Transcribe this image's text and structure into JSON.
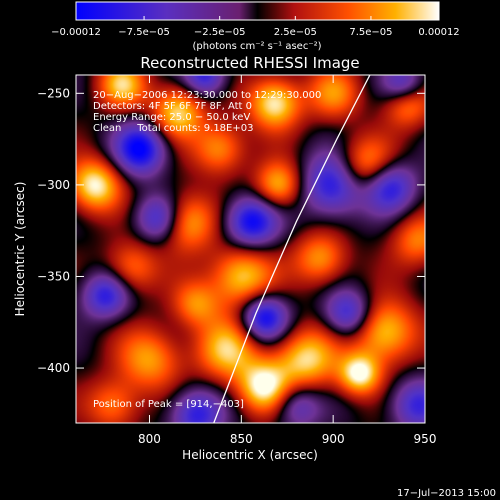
{
  "chart_data": {
    "type": "heatmap",
    "title": "Reconstructed RHESSI Image",
    "xlabel": "Heliocentric X (arcsec)",
    "ylabel": "Heliocentric Y (arcsec)",
    "xlim": [
      760,
      950
    ],
    "ylim": [
      -430,
      -240
    ],
    "x_ticks": [
      {
        "value": 800,
        "label": "800"
      },
      {
        "value": 850,
        "label": "850"
      },
      {
        "value": 900,
        "label": "900"
      },
      {
        "value": 950,
        "label": "950"
      }
    ],
    "y_ticks": [
      {
        "value": -250,
        "label": "−250"
      },
      {
        "value": -300,
        "label": "−300"
      },
      {
        "value": -350,
        "label": "−350"
      },
      {
        "value": -400,
        "label": "−400"
      }
    ],
    "colorbar": {
      "range": [
        -0.00012,
        0.00012
      ],
      "ticks": [
        {
          "value": -0.00012,
          "label": "−0.00012"
        },
        {
          "value": -7.5e-05,
          "label": "−7.5e−05"
        },
        {
          "value": -2.5e-05,
          "label": "−2.5e−05"
        },
        {
          "value": 2.5e-05,
          "label": "2.5e−05"
        },
        {
          "value": 7.5e-05,
          "label": "7.5e−05"
        },
        {
          "value": 0.00012,
          "label": "0.00012"
        }
      ],
      "units_label": "(photons cm⁻² s⁻¹ asec⁻²)"
    },
    "annotations": [
      "20−Aug−2006 12:23:30.000 to 12:29:30.000",
      "Detectors: 4F 5F 6F 7F 8F, Att 0",
      "Energy Range: 25.0 − 50.0 keV",
      "Clean     Total counts: 9.18E+03"
    ],
    "peak_label": "Position of Peak = [914,−403]",
    "limb_curve": [
      [
        835,
        -430
      ],
      [
        858,
        -370
      ],
      [
        880,
        -320
      ],
      [
        902,
        -275
      ],
      [
        920,
        -240
      ]
    ],
    "blobs": [
      [
        770,
        -300,
        1.0,
        10
      ],
      [
        785,
        -245,
        0.8,
        9
      ],
      [
        790,
        -345,
        0.6,
        10
      ],
      [
        800,
        -395,
        0.7,
        12
      ],
      [
        815,
        -260,
        0.9,
        10
      ],
      [
        820,
        -320,
        0.8,
        11
      ],
      [
        838,
        -280,
        0.7,
        10
      ],
      [
        850,
        -350,
        0.9,
        12
      ],
      [
        842,
        -390,
        0.8,
        12
      ],
      [
        868,
        -255,
        1.0,
        10
      ],
      [
        870,
        -300,
        0.8,
        9
      ],
      [
        862,
        -410,
        1.0,
        10
      ],
      [
        885,
        -395,
        0.9,
        12
      ],
      [
        893,
        -340,
        0.7,
        10
      ],
      [
        900,
        -250,
        0.6,
        10
      ],
      [
        918,
        -290,
        0.8,
        11
      ],
      [
        928,
        -380,
        0.9,
        12
      ],
      [
        914,
        -403,
        1.0,
        8
      ],
      [
        940,
        -255,
        0.7,
        9
      ],
      [
        946,
        -330,
        0.6,
        10
      ],
      [
        780,
        -420,
        0.6,
        10
      ],
      [
        825,
        -365,
        0.6,
        9
      ],
      [
        795,
        -280,
        -1.0,
        10
      ],
      [
        805,
        -318,
        -0.8,
        9
      ],
      [
        830,
        -240,
        -0.8,
        8
      ],
      [
        855,
        -320,
        -1.0,
        10
      ],
      [
        862,
        -372,
        -1.0,
        9
      ],
      [
        900,
        -300,
        -0.9,
        12
      ],
      [
        908,
        -370,
        -0.8,
        9
      ],
      [
        930,
        -300,
        -0.9,
        10
      ],
      [
        938,
        -245,
        -0.7,
        8
      ],
      [
        776,
        -360,
        -0.8,
        9
      ],
      [
        825,
        -425,
        -0.8,
        10
      ],
      [
        880,
        -420,
        -0.6,
        9
      ],
      [
        945,
        -420,
        -0.7,
        10
      ]
    ]
  },
  "footer": {
    "timestamp": "17−Jul−2013 15:00"
  }
}
